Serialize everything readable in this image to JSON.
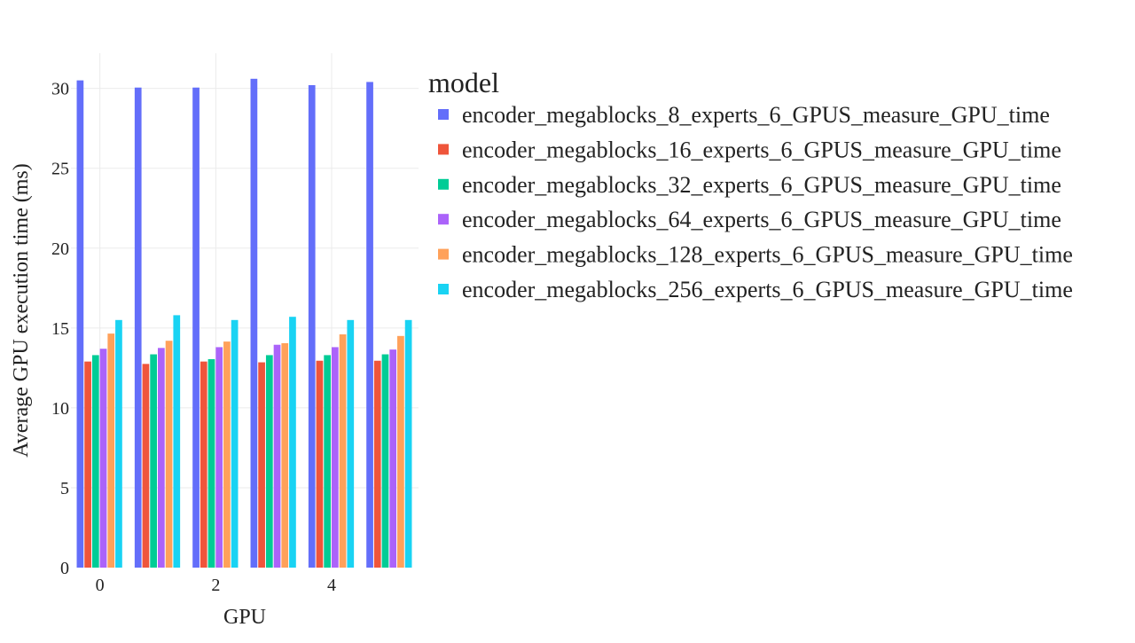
{
  "chart_data": {
    "type": "bar",
    "title": "",
    "xlabel": "GPU",
    "ylabel": "Average GPU execution time (ms)",
    "x": [
      0,
      1,
      2,
      3,
      4,
      5
    ],
    "x_tick_labels": [
      "0",
      "2",
      "4"
    ],
    "x_tick_values": [
      0,
      2,
      4
    ],
    "y_tick_labels": [
      "0",
      "5",
      "10",
      "15",
      "20",
      "25",
      "30"
    ],
    "ylim": [
      0,
      32.2
    ],
    "grid": true,
    "legend_placement": "right",
    "legend_title": "model",
    "series": [
      {
        "name": "encoder_megablocks_8_experts_6_GPUS_measure_GPU_time",
        "color": "#636efa",
        "values": [
          30.5,
          30.05,
          30.05,
          30.6,
          30.2,
          30.4
        ]
      },
      {
        "name": "encoder_megablocks_16_experts_6_GPUS_measure_GPU_time",
        "color": "#ef553b",
        "values": [
          12.9,
          12.75,
          12.9,
          12.85,
          12.95,
          12.95
        ]
      },
      {
        "name": "encoder_megablocks_32_experts_6_GPUS_measure_GPU_time",
        "color": "#00cc96",
        "values": [
          13.3,
          13.35,
          13.05,
          13.3,
          13.3,
          13.35
        ]
      },
      {
        "name": "encoder_megablocks_64_experts_6_GPUS_measure_GPU_time",
        "color": "#ab63fa",
        "values": [
          13.7,
          13.75,
          13.8,
          13.95,
          13.8,
          13.65
        ]
      },
      {
        "name": "encoder_megablocks_128_experts_6_GPUS_measure_GPU_time",
        "color": "#ffa15a",
        "values": [
          14.65,
          14.2,
          14.15,
          14.05,
          14.6,
          14.5
        ]
      },
      {
        "name": "encoder_megablocks_256_experts_6_GPUS_measure_GPU_time",
        "color": "#19d3f3",
        "values": [
          15.5,
          15.8,
          15.5,
          15.7,
          15.5,
          15.5
        ]
      }
    ]
  }
}
